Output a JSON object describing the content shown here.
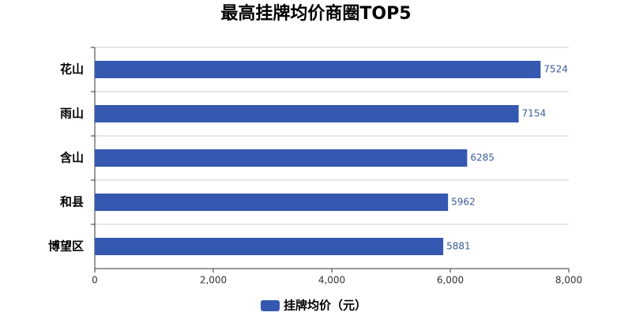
{
  "chart_data": {
    "type": "bar",
    "orientation": "horizontal",
    "title": "最高挂牌均价商圈TOP5",
    "categories": [
      "花山",
      "雨山",
      "含山",
      "和县",
      "博望区"
    ],
    "series": [
      {
        "name": "挂牌均价（元）",
        "color": "#3558b0",
        "values": [
          7524,
          7154,
          6285,
          5962,
          5881
        ]
      }
    ],
    "xlim": [
      0,
      8000
    ],
    "xticks": [
      0,
      {
        "value": 2000,
        "label": "2,000"
      },
      {
        "value": 4000,
        "label": "4,000"
      },
      {
        "value": 6000,
        "label": "6,000"
      },
      {
        "value": 8000,
        "label": "8,000"
      }
    ],
    "legend": "bottom"
  }
}
